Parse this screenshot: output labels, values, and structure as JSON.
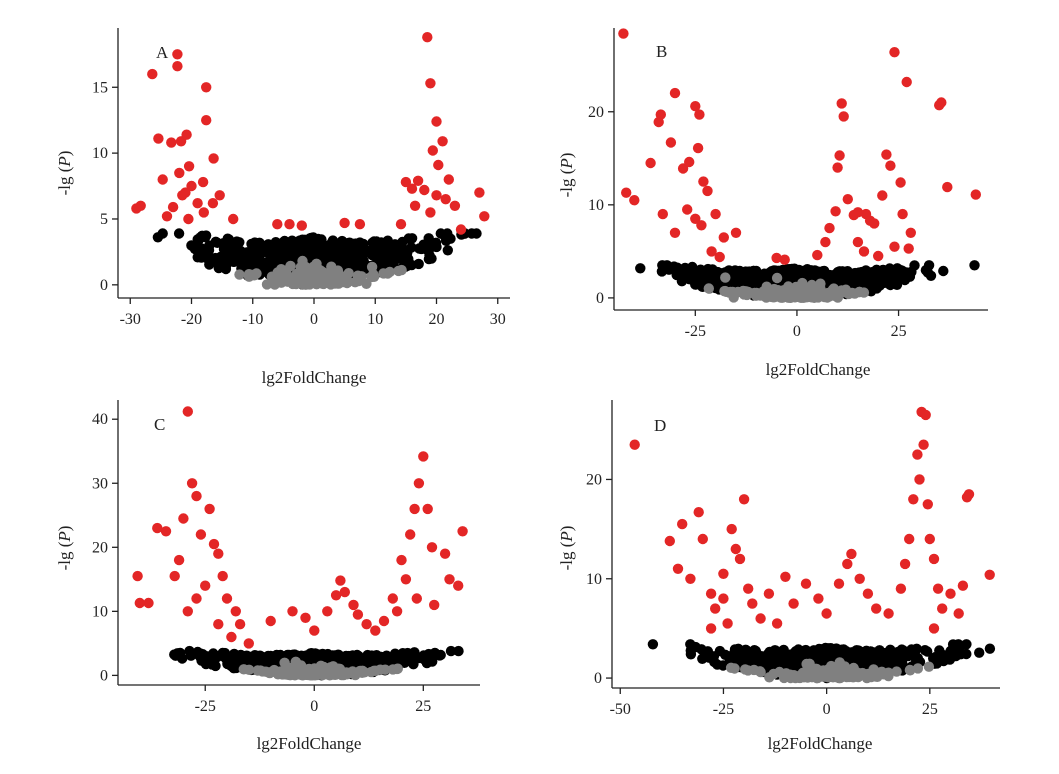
{
  "chart_data": [
    {
      "type": "scatter",
      "panel": "A",
      "xlabel": "lg2FoldChange",
      "ylabel": "-lg (P)",
      "xlim": [
        -32,
        32
      ],
      "ylim": [
        -1,
        19.5
      ],
      "xticks": [
        -30,
        -20,
        -10,
        0,
        10,
        20,
        30
      ],
      "yticks": [
        0,
        5,
        10,
        15
      ],
      "threshold": 3.6,
      "bulk_spread": 27,
      "series": [
        {
          "color": "#e32626",
          "points": [
            [
              -28.3,
              6.0
            ],
            [
              -29.0,
              5.8
            ],
            [
              -26.4,
              16.0
            ],
            [
              -25.4,
              11.1
            ],
            [
              -24.7,
              8.0
            ],
            [
              -23.3,
              10.8
            ],
            [
              -22.3,
              17.5
            ],
            [
              -22.3,
              16.6
            ],
            [
              -21.7,
              10.9
            ],
            [
              -20.8,
              11.4
            ],
            [
              -20.4,
              9.0
            ],
            [
              -18.1,
              7.8
            ],
            [
              -17.6,
              12.5
            ],
            [
              -17.6,
              15.0
            ],
            [
              -16.4,
              9.6
            ],
            [
              -15.4,
              6.8
            ],
            [
              -13.2,
              5.0
            ],
            [
              -23.0,
              5.9
            ],
            [
              -21.5,
              6.8
            ],
            [
              -20.0,
              7.5
            ],
            [
              -19.0,
              6.2
            ],
            [
              -18.0,
              5.5
            ],
            [
              -22.0,
              8.5
            ],
            [
              -21.0,
              7.0
            ],
            [
              -16.5,
              6.2
            ],
            [
              -24.0,
              5.2
            ],
            [
              -20.5,
              5.0
            ],
            [
              -4.0,
              4.6
            ],
            [
              -2.0,
              4.5
            ],
            [
              -6.0,
              4.6
            ],
            [
              5.0,
              4.7
            ],
            [
              7.5,
              4.6
            ],
            [
              18.5,
              18.8
            ],
            [
              19.0,
              15.3
            ],
            [
              20.0,
              12.4
            ],
            [
              21.0,
              10.9
            ],
            [
              19.4,
              10.2
            ],
            [
              20.3,
              9.1
            ],
            [
              22.0,
              8.0
            ],
            [
              17.0,
              7.9
            ],
            [
              15.0,
              7.8
            ],
            [
              16.0,
              7.3
            ],
            [
              18.0,
              7.2
            ],
            [
              20.0,
              6.8
            ],
            [
              21.5,
              6.5
            ],
            [
              23.0,
              6.0
            ],
            [
              27.0,
              7.0
            ],
            [
              27.8,
              5.2
            ],
            [
              16.5,
              6.0
            ],
            [
              19.0,
              5.5
            ],
            [
              14.2,
              4.6
            ],
            [
              24.0,
              4.2
            ]
          ]
        },
        {
          "color": "#000000",
          "points": []
        },
        {
          "color": "#808080",
          "points": []
        }
      ]
    },
    {
      "type": "scatter",
      "panel": "B",
      "xlabel": "lg2FoldChange",
      "ylabel": "-lg (P)",
      "xlim": [
        -45,
        47
      ],
      "ylim": [
        -1.3,
        29
      ],
      "xticks": [
        -25,
        0,
        25
      ],
      "yticks": [
        0,
        10,
        20
      ],
      "threshold": 3.2,
      "bulk_spread": 40,
      "series": [
        {
          "color": "#e32626",
          "points": [
            [
              -42.7,
              28.4
            ],
            [
              -42.0,
              11.3
            ],
            [
              -40.0,
              10.5
            ],
            [
              -36.0,
              14.5
            ],
            [
              -34.0,
              18.9
            ],
            [
              -33.5,
              19.7
            ],
            [
              -31.0,
              16.7
            ],
            [
              -30.0,
              22.0
            ],
            [
              -28.0,
              13.9
            ],
            [
              -26.5,
              14.6
            ],
            [
              -25.0,
              20.6
            ],
            [
              -24.0,
              19.7
            ],
            [
              -24.3,
              16.1
            ],
            [
              -23.0,
              12.5
            ],
            [
              -22.0,
              11.5
            ],
            [
              -20.0,
              9.0
            ],
            [
              -18.0,
              6.5
            ],
            [
              -15.0,
              7.0
            ],
            [
              -25.0,
              8.5
            ],
            [
              -27.0,
              9.5
            ],
            [
              -23.5,
              7.8
            ],
            [
              -21.0,
              5.0
            ],
            [
              -19.0,
              4.4
            ],
            [
              -30.0,
              7.0
            ],
            [
              -33.0,
              9.0
            ],
            [
              -5.0,
              4.3
            ],
            [
              -3.0,
              4.1
            ],
            [
              5.0,
              4.6
            ],
            [
              8.0,
              7.5
            ],
            [
              9.5,
              9.3
            ],
            [
              10.0,
              14.0
            ],
            [
              10.5,
              15.3
            ],
            [
              11.0,
              20.9
            ],
            [
              11.5,
              19.5
            ],
            [
              12.5,
              10.6
            ],
            [
              14.0,
              8.9
            ],
            [
              15.0,
              9.2
            ],
            [
              17.0,
              9.0
            ],
            [
              18.0,
              8.3
            ],
            [
              19.0,
              8.0
            ],
            [
              21.0,
              11.0
            ],
            [
              22.0,
              15.4
            ],
            [
              23.0,
              14.2
            ],
            [
              24.0,
              26.4
            ],
            [
              25.5,
              12.4
            ],
            [
              27.0,
              23.2
            ],
            [
              26.0,
              9.0
            ],
            [
              28.0,
              7.0
            ],
            [
              24.0,
              5.5
            ],
            [
              20.0,
              4.5
            ],
            [
              35.0,
              20.7
            ],
            [
              35.5,
              21.0
            ],
            [
              37.0,
              11.9
            ],
            [
              44.0,
              11.1
            ],
            [
              15.0,
              6.0
            ],
            [
              16.5,
              5.0
            ],
            [
              27.5,
              5.3
            ],
            [
              7.0,
              6.0
            ]
          ]
        },
        {
          "color": "#000000",
          "points": []
        },
        {
          "color": "#808080",
          "points": []
        }
      ]
    },
    {
      "type": "scatter",
      "panel": "C",
      "xlabel": "lg2FoldChange",
      "ylabel": "-lg (P)",
      "xlim": [
        -45,
        38
      ],
      "ylim": [
        -1.5,
        43
      ],
      "xticks": [
        -25,
        0,
        25
      ],
      "yticks": [
        0,
        10,
        20,
        30,
        40
      ],
      "threshold": 3.5,
      "bulk_spread": 36,
      "series": [
        {
          "color": "#e32626",
          "points": [
            [
              -40.5,
              15.5
            ],
            [
              -40.0,
              11.3
            ],
            [
              -38.0,
              11.3
            ],
            [
              -36.0,
              23.0
            ],
            [
              -34.0,
              22.5
            ],
            [
              -31.0,
              18.0
            ],
            [
              -30.0,
              24.5
            ],
            [
              -29.0,
              41.2
            ],
            [
              -28.0,
              30.0
            ],
            [
              -27.0,
              28.0
            ],
            [
              -26.0,
              22.0
            ],
            [
              -24.0,
              26.0
            ],
            [
              -23.0,
              20.5
            ],
            [
              -22.0,
              19.0
            ],
            [
              -21.0,
              15.5
            ],
            [
              -20.0,
              12.0
            ],
            [
              -18.0,
              10.0
            ],
            [
              -17.0,
              8.0
            ],
            [
              -25.0,
              14.0
            ],
            [
              -27.0,
              12.0
            ],
            [
              -29.0,
              10.0
            ],
            [
              -22.0,
              8.0
            ],
            [
              -19.0,
              6.0
            ],
            [
              -15.0,
              5.0
            ],
            [
              -10.0,
              8.5
            ],
            [
              -5.0,
              10.0
            ],
            [
              -2.0,
              9.0
            ],
            [
              0.0,
              7.0
            ],
            [
              3.0,
              10.0
            ],
            [
              5.0,
              12.5
            ],
            [
              6.0,
              14.8
            ],
            [
              7.0,
              13.0
            ],
            [
              9.0,
              11.0
            ],
            [
              10.0,
              9.5
            ],
            [
              12.0,
              8.0
            ],
            [
              14.0,
              7.0
            ],
            [
              16.0,
              8.5
            ],
            [
              18.0,
              12.0
            ],
            [
              20.0,
              18.0
            ],
            [
              22.0,
              22.0
            ],
            [
              23.0,
              26.0
            ],
            [
              24.0,
              30.0
            ],
            [
              25.0,
              34.2
            ],
            [
              26.0,
              26.0
            ],
            [
              27.0,
              20.0
            ],
            [
              30.0,
              19.0
            ],
            [
              31.0,
              15.0
            ],
            [
              33.0,
              14.0
            ],
            [
              34.0,
              22.5
            ],
            [
              21.0,
              15.0
            ],
            [
              19.0,
              10.0
            ],
            [
              23.5,
              12.0
            ],
            [
              27.5,
              11.0
            ],
            [
              -32.0,
              15.5
            ]
          ]
        },
        {
          "color": "#000000",
          "points": []
        },
        {
          "color": "#808080",
          "points": []
        }
      ]
    },
    {
      "type": "scatter",
      "panel": "D",
      "xlabel": "lg2FoldChange",
      "ylabel": "-lg (P)",
      "xlim": [
        -52,
        42
      ],
      "ylim": [
        -1,
        28
      ],
      "xticks": [
        -50,
        -25,
        0,
        25
      ],
      "yticks": [
        0,
        10,
        20
      ],
      "threshold": 3.1,
      "bulk_spread": 42,
      "series": [
        {
          "color": "#e32626",
          "points": [
            [
              -46.5,
              23.5
            ],
            [
              -38.0,
              13.8
            ],
            [
              -36.0,
              11.0
            ],
            [
              -35.0,
              15.5
            ],
            [
              -33.0,
              10.0
            ],
            [
              -31.0,
              16.7
            ],
            [
              -30.0,
              14.0
            ],
            [
              -28.0,
              8.5
            ],
            [
              -25.0,
              10.5
            ],
            [
              -23.0,
              15.0
            ],
            [
              -22.0,
              13.0
            ],
            [
              -21.0,
              12.0
            ],
            [
              -20.0,
              18.0
            ],
            [
              -19.0,
              9.0
            ],
            [
              -18.0,
              7.5
            ],
            [
              -16.0,
              6.0
            ],
            [
              -25.0,
              8.0
            ],
            [
              -27.0,
              7.0
            ],
            [
              -24.0,
              5.5
            ],
            [
              -14.0,
              8.5
            ],
            [
              -10.0,
              10.2
            ],
            [
              -8.0,
              7.5
            ],
            [
              -5.0,
              9.5
            ],
            [
              -2.0,
              8.0
            ],
            [
              0.0,
              6.5
            ],
            [
              3.0,
              9.5
            ],
            [
              5.0,
              11.5
            ],
            [
              6.0,
              12.5
            ],
            [
              8.0,
              10.0
            ],
            [
              10.0,
              8.5
            ],
            [
              12.0,
              7.0
            ],
            [
              15.0,
              6.5
            ],
            [
              18.0,
              9.0
            ],
            [
              19.0,
              11.5
            ],
            [
              20.0,
              14.0
            ],
            [
              21.0,
              18.0
            ],
            [
              22.0,
              22.5
            ],
            [
              23.0,
              26.8
            ],
            [
              24.0,
              26.5
            ],
            [
              23.5,
              23.5
            ],
            [
              22.5,
              20.0
            ],
            [
              24.5,
              17.5
            ],
            [
              25.0,
              14.0
            ],
            [
              26.0,
              12.0
            ],
            [
              27.0,
              9.0
            ],
            [
              28.0,
              7.0
            ],
            [
              30.0,
              8.5
            ],
            [
              32.0,
              6.5
            ],
            [
              33.0,
              9.3
            ],
            [
              34.0,
              18.2
            ],
            [
              34.5,
              18.5
            ],
            [
              39.5,
              10.4
            ],
            [
              -28.0,
              5.0
            ],
            [
              26.0,
              5.0
            ],
            [
              -12.0,
              5.5
            ]
          ]
        },
        {
          "color": "#000000",
          "points": []
        },
        {
          "color": "#808080",
          "points": []
        }
      ]
    }
  ]
}
